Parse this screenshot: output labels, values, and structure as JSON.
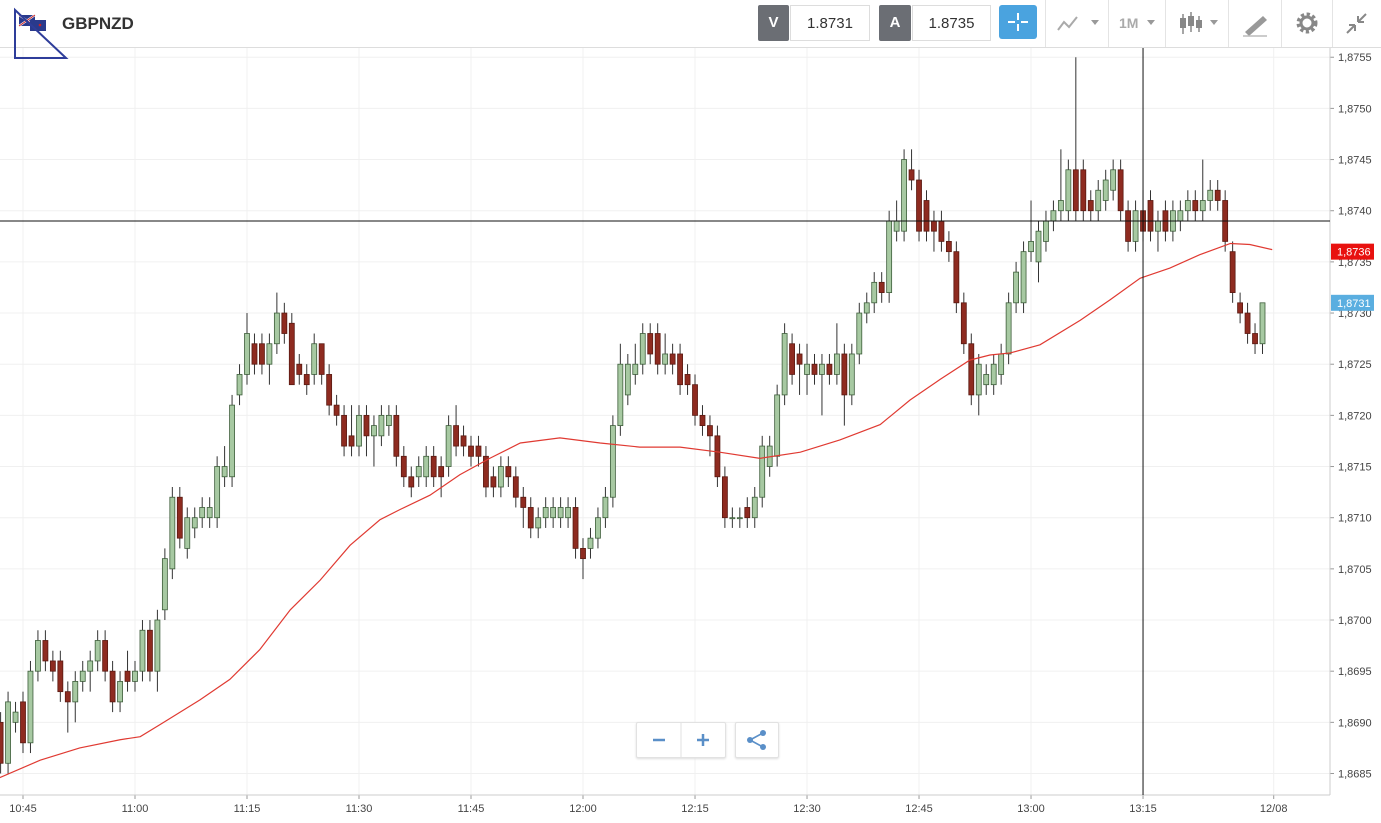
{
  "header": {
    "symbol": "GBPNZD",
    "bid_label": "V",
    "bid": "1.8731",
    "ask_label": "A",
    "ask": "1.8735",
    "timeframe": "1M"
  },
  "chart_data": {
    "type": "candlestick",
    "candles": [
      [
        1.869,
        1.8691,
        1.8685,
        1.8686
      ],
      [
        1.8686,
        1.8693,
        1.8685,
        1.8692
      ],
      [
        1.869,
        1.8692,
        1.8689,
        1.8691
      ],
      [
        1.8692,
        1.8693,
        1.8687,
        1.8688
      ],
      [
        1.8688,
        1.8696,
        1.8687,
        1.8695
      ],
      [
        1.8695,
        1.8699,
        1.8694,
        1.8698
      ],
      [
        1.8698,
        1.8699,
        1.8695,
        1.8696
      ],
      [
        1.8696,
        1.8697,
        1.8694,
        1.8695
      ],
      [
        1.8696,
        1.8697,
        1.8692,
        1.8693
      ],
      [
        1.8693,
        1.8694,
        1.8689,
        1.8692
      ],
      [
        1.8692,
        1.8695,
        1.869,
        1.8694
      ],
      [
        1.8694,
        1.8696,
        1.8693,
        1.8695
      ],
      [
        1.8695,
        1.8697,
        1.8693,
        1.8696
      ],
      [
        1.8696,
        1.8699,
        1.8695,
        1.8698
      ],
      [
        1.8698,
        1.8699,
        1.8694,
        1.8695
      ],
      [
        1.8695,
        1.8696,
        1.8691,
        1.8692
      ],
      [
        1.8692,
        1.8695,
        1.8691,
        1.8694
      ],
      [
        1.8695,
        1.8697,
        1.8693,
        1.8694
      ],
      [
        1.8694,
        1.8696,
        1.8693,
        1.8695
      ],
      [
        1.8695,
        1.87,
        1.8694,
        1.8699
      ],
      [
        1.8699,
        1.87,
        1.8694,
        1.8695
      ],
      [
        1.8695,
        1.8701,
        1.8693,
        1.87
      ],
      [
        1.8701,
        1.8707,
        1.87,
        1.8706
      ],
      [
        1.8705,
        1.8713,
        1.8704,
        1.8712
      ],
      [
        1.8712,
        1.8713,
        1.8707,
        1.8708
      ],
      [
        1.8707,
        1.8711,
        1.8706,
        1.871
      ],
      [
        1.8709,
        1.8711,
        1.8708,
        1.871
      ],
      [
        1.871,
        1.8712,
        1.8709,
        1.8711
      ],
      [
        1.871,
        1.8712,
        1.8709,
        1.8711
      ],
      [
        1.871,
        1.8716,
        1.8709,
        1.8715
      ],
      [
        1.8714,
        1.8717,
        1.8713,
        1.8715
      ],
      [
        1.8714,
        1.8722,
        1.8713,
        1.8721
      ],
      [
        1.8722,
        1.8725,
        1.8721,
        1.8724
      ],
      [
        1.8724,
        1.873,
        1.8723,
        1.8728
      ],
      [
        1.8727,
        1.8728,
        1.8724,
        1.8725
      ],
      [
        1.8727,
        1.8728,
        1.8724,
        1.8725
      ],
      [
        1.8725,
        1.8728,
        1.8723,
        1.8727
      ],
      [
        1.8727,
        1.8732,
        1.8726,
        1.873
      ],
      [
        1.873,
        1.8731,
        1.8727,
        1.8728
      ],
      [
        1.8729,
        1.873,
        1.8723,
        1.8723
      ],
      [
        1.8725,
        1.8726,
        1.8723,
        1.8724
      ],
      [
        1.8724,
        1.8725,
        1.8722,
        1.8723
      ],
      [
        1.8724,
        1.8728,
        1.8723,
        1.8727
      ],
      [
        1.8727,
        1.8727,
        1.8723,
        1.8724
      ],
      [
        1.8724,
        1.8725,
        1.872,
        1.8721
      ],
      [
        1.8721,
        1.8722,
        1.8719,
        1.872
      ],
      [
        1.872,
        1.8721,
        1.8716,
        1.8717
      ],
      [
        1.8718,
        1.8721,
        1.8716,
        1.8717
      ],
      [
        1.8717,
        1.8721,
        1.8716,
        1.872
      ],
      [
        1.872,
        1.8721,
        1.8716,
        1.8718
      ],
      [
        1.8718,
        1.872,
        1.8715,
        1.8719
      ],
      [
        1.8718,
        1.8721,
        1.8717,
        1.872
      ],
      [
        1.8719,
        1.8721,
        1.8718,
        1.872
      ],
      [
        1.872,
        1.8721,
        1.8715,
        1.8716
      ],
      [
        1.8716,
        1.8717,
        1.8713,
        1.8714
      ],
      [
        1.8714,
        1.8715,
        1.8712,
        1.8713
      ],
      [
        1.8714,
        1.8716,
        1.8713,
        1.8715
      ],
      [
        1.8714,
        1.8717,
        1.8713,
        1.8716
      ],
      [
        1.8716,
        1.8717,
        1.8713,
        1.8714
      ],
      [
        1.8715,
        1.8716,
        1.8712,
        1.8714
      ],
      [
        1.8715,
        1.872,
        1.8714,
        1.8719
      ],
      [
        1.8719,
        1.8721,
        1.8716,
        1.8717
      ],
      [
        1.8718,
        1.8719,
        1.8716,
        1.8717
      ],
      [
        1.8717,
        1.8718,
        1.8715,
        1.8716
      ],
      [
        1.8717,
        1.8718,
        1.8715,
        1.8716
      ],
      [
        1.8716,
        1.8717,
        1.8712,
        1.8713
      ],
      [
        1.8714,
        1.8715,
        1.8712,
        1.8713
      ],
      [
        1.8713,
        1.8716,
        1.8712,
        1.8715
      ],
      [
        1.8715,
        1.8716,
        1.8713,
        1.8714
      ],
      [
        1.8714,
        1.8715,
        1.8711,
        1.8712
      ],
      [
        1.8712,
        1.8713,
        1.8709,
        1.8711
      ],
      [
        1.8711,
        1.8712,
        1.8708,
        1.8709
      ],
      [
        1.8709,
        1.8711,
        1.8708,
        1.871
      ],
      [
        1.871,
        1.8712,
        1.8709,
        1.8711
      ],
      [
        1.871,
        1.8712,
        1.8709,
        1.8711
      ],
      [
        1.871,
        1.8712,
        1.8709,
        1.8711
      ],
      [
        1.871,
        1.8712,
        1.8709,
        1.8711
      ],
      [
        1.8711,
        1.8712,
        1.8706,
        1.8707
      ],
      [
        1.8707,
        1.8708,
        1.8704,
        1.8706
      ],
      [
        1.8707,
        1.8709,
        1.8706,
        1.8708
      ],
      [
        1.8708,
        1.8711,
        1.8707,
        1.871
      ],
      [
        1.871,
        1.8713,
        1.8709,
        1.8712
      ],
      [
        1.8712,
        1.872,
        1.8711,
        1.8719
      ],
      [
        1.8719,
        1.8727,
        1.8718,
        1.8725
      ],
      [
        1.8722,
        1.8726,
        1.8721,
        1.8725
      ],
      [
        1.8724,
        1.8727,
        1.8723,
        1.8725
      ],
      [
        1.8725,
        1.8729,
        1.8724,
        1.8728
      ],
      [
        1.8728,
        1.8729,
        1.8725,
        1.8726
      ],
      [
        1.8728,
        1.8729,
        1.8724,
        1.8725
      ],
      [
        1.8725,
        1.8728,
        1.8724,
        1.8726
      ],
      [
        1.8726,
        1.8727,
        1.8724,
        1.8725
      ],
      [
        1.8726,
        1.8727,
        1.8722,
        1.8723
      ],
      [
        1.8724,
        1.8725,
        1.8722,
        1.8723
      ],
      [
        1.8723,
        1.8724,
        1.8719,
        1.872
      ],
      [
        1.872,
        1.8721,
        1.8718,
        1.8719
      ],
      [
        1.8719,
        1.872,
        1.8716,
        1.8718
      ],
      [
        1.8718,
        1.8719,
        1.8713,
        1.8714
      ],
      [
        1.8714,
        1.8715,
        1.8709,
        1.871
      ],
      [
        1.871,
        1.8711,
        1.8709,
        1.871
      ],
      [
        1.871,
        1.8711,
        1.8709,
        1.871
      ],
      [
        1.8711,
        1.8712,
        1.8709,
        1.871
      ],
      [
        1.871,
        1.8713,
        1.8709,
        1.8712
      ],
      [
        1.8712,
        1.8718,
        1.8711,
        1.8717
      ],
      [
        1.8715,
        1.8718,
        1.8714,
        1.8717
      ],
      [
        1.8716,
        1.8723,
        1.8715,
        1.8722
      ],
      [
        1.8722,
        1.8729,
        1.8721,
        1.8728
      ],
      [
        1.8727,
        1.8728,
        1.8723,
        1.8724
      ],
      [
        1.8726,
        1.8727,
        1.8722,
        1.8725
      ],
      [
        1.8724,
        1.8727,
        1.8722,
        1.8725
      ],
      [
        1.8725,
        1.8726,
        1.8723,
        1.8724
      ],
      [
        1.8724,
        1.8726,
        1.872,
        1.8725
      ],
      [
        1.8725,
        1.8726,
        1.8723,
        1.8724
      ],
      [
        1.8724,
        1.8729,
        1.8723,
        1.8726
      ],
      [
        1.8726,
        1.8727,
        1.8719,
        1.8722
      ],
      [
        1.8722,
        1.8727,
        1.8721,
        1.8726
      ],
      [
        1.8726,
        1.8731,
        1.8725,
        1.873
      ],
      [
        1.873,
        1.8732,
        1.8729,
        1.8731
      ],
      [
        1.8731,
        1.8734,
        1.873,
        1.8733
      ],
      [
        1.8733,
        1.8734,
        1.8731,
        1.8732
      ],
      [
        1.8732,
        1.874,
        1.8731,
        1.8739
      ],
      [
        1.8738,
        1.8741,
        1.8737,
        1.8739
      ],
      [
        1.8738,
        1.8746,
        1.8737,
        1.8745
      ],
      [
        1.8744,
        1.8746,
        1.8742,
        1.8743
      ],
      [
        1.8743,
        1.8744,
        1.8737,
        1.8738
      ],
      [
        1.8741,
        1.8742,
        1.8737,
        1.8738
      ],
      [
        1.8739,
        1.874,
        1.8736,
        1.8738
      ],
      [
        1.8739,
        1.874,
        1.8736,
        1.8737
      ],
      [
        1.8737,
        1.8738,
        1.8735,
        1.8736
      ],
      [
        1.8736,
        1.8737,
        1.873,
        1.8731
      ],
      [
        1.8731,
        1.8732,
        1.8726,
        1.8727
      ],
      [
        1.8727,
        1.8728,
        1.8721,
        1.8722
      ],
      [
        1.8722,
        1.8726,
        1.872,
        1.8725
      ],
      [
        1.8723,
        1.8725,
        1.8722,
        1.8724
      ],
      [
        1.8723,
        1.8726,
        1.8722,
        1.8725
      ],
      [
        1.8724,
        1.8727,
        1.8723,
        1.8726
      ],
      [
        1.8726,
        1.8732,
        1.8725,
        1.8731
      ],
      [
        1.8731,
        1.8735,
        1.873,
        1.8734
      ],
      [
        1.8731,
        1.8737,
        1.873,
        1.8736
      ],
      [
        1.8736,
        1.8741,
        1.8735,
        1.8737
      ],
      [
        1.8735,
        1.8739,
        1.8733,
        1.8738
      ],
      [
        1.8737,
        1.874,
        1.8736,
        1.8739
      ],
      [
        1.8739,
        1.8741,
        1.8738,
        1.874
      ],
      [
        1.874,
        1.8746,
        1.8739,
        1.8741
      ],
      [
        1.874,
        1.8745,
        1.8739,
        1.8744
      ],
      [
        1.8744,
        1.8755,
        1.8739,
        1.874
      ],
      [
        1.8744,
        1.8745,
        1.8739,
        1.874
      ],
      [
        1.8741,
        1.8742,
        1.8739,
        1.874
      ],
      [
        1.874,
        1.8743,
        1.8739,
        1.8742
      ],
      [
        1.8741,
        1.8744,
        1.874,
        1.8743
      ],
      [
        1.8742,
        1.8745,
        1.8741,
        1.8744
      ],
      [
        1.8744,
        1.8745,
        1.8739,
        1.874
      ],
      [
        1.874,
        1.8741,
        1.8736,
        1.8737
      ],
      [
        1.8737,
        1.8741,
        1.8736,
        1.874
      ],
      [
        1.874,
        1.8742,
        1.8737,
        1.8738
      ],
      [
        1.8741,
        1.8742,
        1.8737,
        1.8738
      ],
      [
        1.8738,
        1.874,
        1.8736,
        1.8739
      ],
      [
        1.874,
        1.8741,
        1.8737,
        1.8738
      ],
      [
        1.8738,
        1.8741,
        1.8737,
        1.874
      ],
      [
        1.8739,
        1.8741,
        1.8738,
        1.874
      ],
      [
        1.874,
        1.8742,
        1.8739,
        1.8741
      ],
      [
        1.8741,
        1.8742,
        1.8739,
        1.874
      ],
      [
        1.874,
        1.8745,
        1.8739,
        1.8741
      ],
      [
        1.8741,
        1.8743,
        1.874,
        1.8742
      ],
      [
        1.8742,
        1.8743,
        1.874,
        1.8741
      ],
      [
        1.8741,
        1.8742,
        1.8736,
        1.8737
      ],
      [
        1.8736,
        1.8737,
        1.8731,
        1.8732
      ],
      [
        1.8731,
        1.8732,
        1.8729,
        1.873
      ],
      [
        1.873,
        1.8731,
        1.8727,
        1.8728
      ],
      [
        1.8728,
        1.8729,
        1.8726,
        1.8727
      ],
      [
        1.8727,
        1.8731,
        1.8726,
        1.8731
      ]
    ],
    "up_color": "#a7c9a2",
    "down_color": "#8e2b20",
    "ma": {
      "color": "#e03a32",
      "x": [
        -0.1,
        5.3,
        10.6,
        16.0,
        18.7,
        21.4,
        26.7,
        30.7,
        34.7,
        38.8,
        42.8,
        46.8,
        50.8,
        53.5,
        57.5,
        61.5,
        65.5,
        69.6,
        74.9,
        80.3,
        85.6,
        91.0,
        96.3,
        101.7,
        107.1,
        112.4,
        117.8,
        121.8,
        125.8,
        129.8,
        132.5,
        135.2,
        139.2,
        144.6,
        148.6,
        152.6,
        156.6,
        160.6,
        164.7,
        167.3,
        170.3
      ],
      "values": [
        1.86846,
        1.86863,
        1.86875,
        1.86883,
        1.86886,
        1.86898,
        1.86922,
        1.86942,
        1.86971,
        1.8701,
        1.87039,
        1.87073,
        1.87098,
        1.87108,
        1.87122,
        1.87142,
        1.87158,
        1.87173,
        1.87178,
        1.87173,
        1.87169,
        1.87169,
        1.87164,
        1.87158,
        1.87164,
        1.87176,
        1.87191,
        1.87215,
        1.87235,
        1.87254,
        1.87259,
        1.87261,
        1.87269,
        1.87293,
        1.87313,
        1.87334,
        1.87344,
        1.87357,
        1.87368,
        1.87367,
        1.87362
      ]
    },
    "xlim": [
      -0.08,
      178.04
    ],
    "xticks": [
      {
        "value": 3,
        "label": "10:45"
      },
      {
        "value": 18,
        "label": "11:00"
      },
      {
        "value": 33,
        "label": "11:15"
      },
      {
        "value": 48,
        "label": "11:30"
      },
      {
        "value": 63,
        "label": "11:45"
      },
      {
        "value": 78,
        "label": "12:00"
      },
      {
        "value": 93,
        "label": "12:15"
      },
      {
        "value": 108,
        "label": "12:30"
      },
      {
        "value": 123,
        "label": "12:45"
      },
      {
        "value": 138,
        "label": "13:00"
      },
      {
        "value": 153,
        "label": "13:15"
      },
      {
        "value": 170.5,
        "label": "12/08"
      }
    ],
    "ylim": [
      1.86829,
      1.8756
    ],
    "yticks": [
      {
        "value": 1.8685,
        "label": "1,8685"
      },
      {
        "value": 1.869,
        "label": "1,8690"
      },
      {
        "value": 1.8695,
        "label": "1,8695"
      },
      {
        "value": 1.87,
        "label": "1,8700"
      },
      {
        "value": 1.8705,
        "label": "1,8705"
      },
      {
        "value": 1.871,
        "label": "1,8710"
      },
      {
        "value": 1.8715,
        "label": "1,8715"
      },
      {
        "value": 1.872,
        "label": "1,8720"
      },
      {
        "value": 1.8725,
        "label": "1,8725"
      },
      {
        "value": 1.873,
        "label": "1,8730"
      },
      {
        "value": 1.8735,
        "label": "1,8735"
      },
      {
        "value": 1.874,
        "label": "1,8740"
      },
      {
        "value": 1.8745,
        "label": "1,8745"
      },
      {
        "value": 1.875,
        "label": "1,8750"
      },
      {
        "value": 1.8755,
        "label": "1,8755"
      }
    ],
    "grid": true,
    "crosshair": {
      "x": 153,
      "y": 1.8739
    },
    "price_labels": [
      {
        "value": 1.8736,
        "label": "1,8736",
        "color": "#e8110f"
      },
      {
        "value": 1.8731,
        "label": "1,8731",
        "color": "#5aaee0"
      }
    ]
  }
}
